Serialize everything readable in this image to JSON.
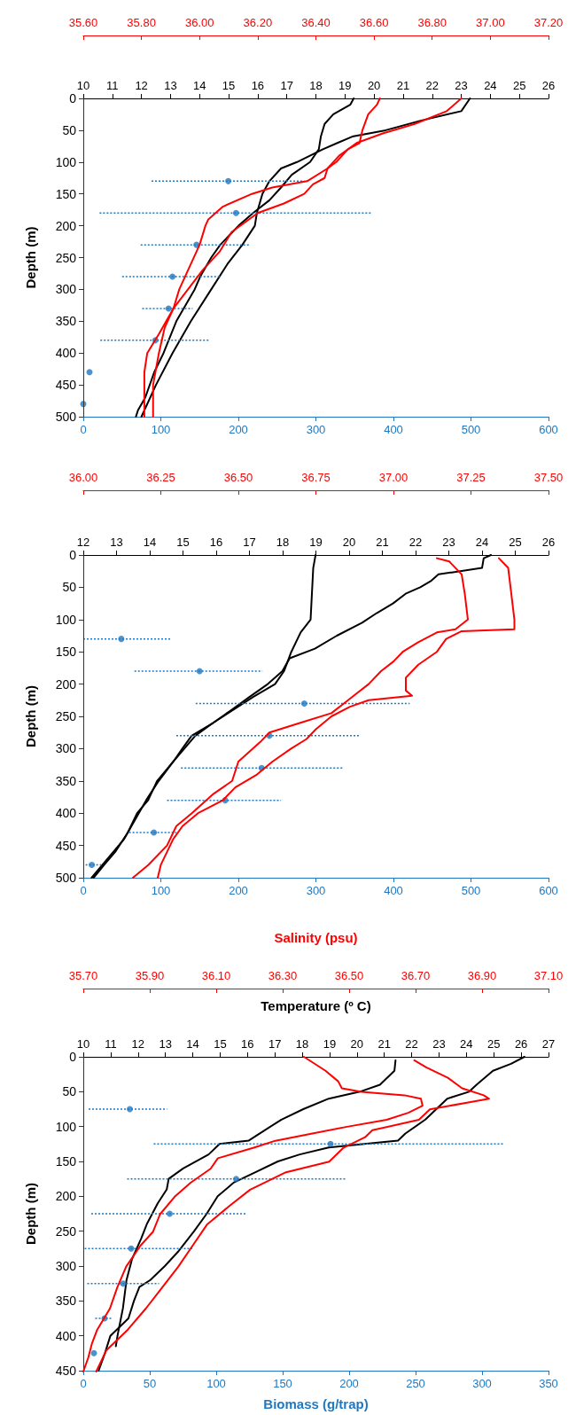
{
  "chart_data": [
    {
      "type": "line",
      "ylabel": "Depth (m)",
      "ylim": [
        500,
        0
      ],
      "yticks": [
        0,
        50,
        100,
        150,
        200,
        250,
        300,
        350,
        400,
        450,
        500
      ],
      "marker": "none",
      "xlim": [
        0,
        600
      ],
      "xticks": [
        0,
        100,
        200,
        300,
        400,
        500,
        600
      ],
      "x2lim": [
        10,
        26
      ],
      "x2ticks": [
        10,
        11,
        12,
        13,
        14,
        15,
        16,
        17,
        18,
        19,
        20,
        21,
        22,
        23,
        24,
        25,
        26
      ],
      "series": [
        {
          "axis": "x2",
          "color": "#000000",
          "x": [
            23.3,
            23.0,
            21.6,
            20.4,
            19.25,
            18.74,
            18.24,
            17.35,
            16.8,
            16.4,
            16.16,
            15.97,
            15.9,
            15.47,
            14.96,
            14.4,
            13.7,
            13.07,
            12.5,
            12.0
          ],
          "values": [
            0,
            20,
            35,
            50,
            60,
            70,
            80,
            100,
            110,
            130,
            150,
            180,
            200,
            230,
            260,
            300,
            350,
            400,
            450,
            500
          ]
        },
        {
          "axis": "x2",
          "color": "#000000",
          "x": [
            19.3,
            19.18,
            18.6,
            18.3,
            18.17,
            18.1,
            17.8,
            17.17,
            16.8,
            16.4,
            15.84,
            15.34,
            14.71,
            14.4,
            14.02,
            13.83,
            13.2,
            12.76,
            12.44,
            12.13,
            11.88,
            11.81
          ],
          "values": [
            0,
            10,
            25,
            40,
            60,
            80,
            100,
            120,
            140,
            160,
            180,
            200,
            230,
            250,
            280,
            300,
            350,
            400,
            430,
            470,
            490,
            500
          ]
        },
        {
          "type": "scatter",
          "marker": "circle",
          "color": "#1f78c1",
          "x": [
            187,
            197,
            146,
            115,
            110,
            93,
            8,
            0
          ],
          "values": [
            130,
            180,
            230,
            280,
            330,
            380,
            430,
            480
          ],
          "xerrors": [
            [
              88,
              285
            ],
            [
              21,
              372
            ],
            [
              74,
              215
            ],
            [
              50,
              177
            ],
            [
              76,
              141
            ],
            [
              22,
              163
            ],
            null,
            null
          ]
        }
      ]
    },
    {
      "type": "line",
      "ylim": [
        500,
        0
      ],
      "tick_labels": "x",
      "marker": "none",
      "xlim": [
        35.6,
        37.2
      ],
      "xticks": [
        {
          "value": 35.6,
          "label": "35.60"
        },
        {
          "value": 35.8,
          "label": "35.80"
        },
        {
          "value": 36.0,
          "label": "36.00"
        },
        {
          "value": 36.2,
          "label": "36.20"
        },
        {
          "value": 36.4,
          "label": "36.40"
        },
        {
          "value": 36.6,
          "label": "36.60"
        },
        {
          "value": 36.8,
          "label": "36.80"
        },
        {
          "value": 37.0,
          "label": "37.00"
        },
        {
          "value": 37.2,
          "label": "37.20"
        }
      ],
      "series": [
        {
          "color": "#ff0000",
          "x": [
            36.9,
            36.85,
            36.74,
            36.63,
            36.54,
            36.48,
            36.44,
            36.37,
            36.25,
            36.18,
            36.08,
            36.03,
            36.02,
            36.0,
            35.96,
            35.93,
            35.91,
            35.86,
            35.82,
            35.81,
            35.81
          ],
          "values": [
            0,
            20,
            40,
            55,
            70,
            90,
            110,
            130,
            140,
            150,
            170,
            190,
            200,
            230,
            270,
            300,
            330,
            370,
            400,
            430,
            500
          ]
        },
        {
          "color": "#ff0000",
          "x": [
            36.62,
            36.61,
            36.58,
            36.56,
            36.55,
            36.51,
            36.47,
            36.44,
            36.43,
            36.39,
            36.36,
            36.29,
            36.2,
            36.11,
            36.07,
            36.01,
            35.96,
            35.91,
            35.88,
            35.86,
            35.84,
            35.84
          ],
          "values": [
            0,
            10,
            25,
            50,
            70,
            80,
            100,
            110,
            125,
            135,
            150,
            165,
            180,
            210,
            240,
            270,
            300,
            330,
            360,
            400,
            450,
            500
          ]
        }
      ]
    },
    {
      "type": "line",
      "ylabel": "Depth (m)",
      "ylim": [
        500,
        0
      ],
      "yticks": [
        0,
        50,
        100,
        150,
        200,
        250,
        300,
        350,
        400,
        450,
        500
      ],
      "marker": "none",
      "xlim": [
        0,
        600
      ],
      "xticks": [
        0,
        100,
        200,
        300,
        400,
        500,
        600
      ],
      "x2lim": [
        12,
        26
      ],
      "x2ticks": [
        12,
        13,
        14,
        15,
        16,
        17,
        18,
        19,
        20,
        21,
        22,
        23,
        24,
        25,
        26
      ],
      "series": [
        {
          "axis": "x2",
          "color": "#000000",
          "x": [
            24.27,
            24.05,
            24.0,
            22.69,
            22.47,
            22.14,
            21.7,
            21.32,
            20.83,
            20.39,
            19.63,
            18.97,
            18.21,
            17.99,
            17.55,
            17.0,
            16.46,
            15.91,
            15.37,
            15.04,
            14.71,
            14.27,
            13.89,
            13.56,
            13.23,
            12.74,
            12.25
          ],
          "values": [
            0,
            5,
            20,
            30,
            40,
            50,
            60,
            75,
            90,
            105,
            125,
            145,
            160,
            180,
            200,
            220,
            240,
            260,
            280,
            300,
            320,
            350,
            380,
            410,
            440,
            470,
            500
          ]
        },
        {
          "axis": "x2",
          "color": "#000000",
          "x": [
            18.99,
            18.92,
            18.84,
            18.54,
            18.26,
            18.04,
            17.77,
            17.11,
            16.51,
            15.91,
            15.26,
            14.98,
            14.71,
            14.22,
            13.95,
            13.62,
            13.34,
            12.96,
            12.63,
            12.31
          ],
          "values": [
            0,
            20,
            100,
            120,
            150,
            180,
            200,
            220,
            240,
            260,
            280,
            300,
            320,
            350,
            380,
            400,
            430,
            460,
            480,
            500
          ]
        },
        {
          "type": "scatter",
          "marker": "circle",
          "color": "#1f78c1",
          "x": [
            49,
            150,
            285,
            240,
            230,
            183,
            91,
            11
          ],
          "values": [
            130,
            180,
            230,
            280,
            330,
            380,
            430,
            480
          ],
          "xerrors": [
            [
              0,
              112
            ],
            [
              66,
              231
            ],
            [
              145,
              421
            ],
            [
              120,
              357
            ],
            [
              126,
              334
            ],
            [
              108,
              255
            ],
            [
              59,
              120
            ],
            [
              3,
              24
            ]
          ]
        }
      ]
    },
    {
      "type": "line",
      "ylim": [
        500,
        0
      ],
      "tick_labels": "x",
      "marker": "none",
      "xlim": [
        36.0,
        37.5
      ],
      "xticks": [
        {
          "value": 36.0,
          "label": "36.00"
        },
        {
          "value": 36.25,
          "label": "36.25"
        },
        {
          "value": 36.5,
          "label": "36.50"
        },
        {
          "value": 36.75,
          "label": "36.75"
        },
        {
          "value": 37.0,
          "label": "37.00"
        },
        {
          "value": 37.25,
          "label": "37.25"
        },
        {
          "value": 37.5,
          "label": "37.50"
        }
      ],
      "series": [
        {
          "color": "#ff0000",
          "x": [
            37.14,
            37.18,
            37.22,
            37.23,
            37.24,
            37.2,
            37.14,
            37.08,
            37.03,
            37.0,
            36.96,
            36.92,
            36.88,
            36.84,
            36.8,
            36.7,
            36.6,
            36.57,
            36.5,
            36.48,
            36.42,
            36.35,
            36.3,
            36.27,
            36.21,
            36.16
          ],
          "values": [
            5,
            10,
            30,
            60,
            100,
            115,
            120,
            135,
            150,
            165,
            180,
            200,
            215,
            230,
            245,
            260,
            275,
            290,
            320,
            350,
            370,
            400,
            420,
            450,
            480,
            500
          ]
        },
        {
          "color": "#ff0000",
          "x": [
            37.34,
            37.37,
            37.38,
            37.39,
            37.39,
            37.22,
            37.17,
            37.14,
            37.08,
            37.04,
            37.04,
            37.06,
            36.92,
            36.86,
            36.8,
            36.75,
            36.72,
            36.67,
            36.61,
            36.56,
            36.49,
            36.45,
            36.37,
            36.32,
            36.29,
            36.27,
            36.25,
            36.24
          ],
          "values": [
            5,
            20,
            60,
            100,
            115,
            118,
            130,
            150,
            170,
            190,
            210,
            218,
            225,
            235,
            250,
            270,
            285,
            300,
            320,
            340,
            360,
            380,
            400,
            420,
            440,
            460,
            480,
            500
          ]
        }
      ]
    },
    {
      "type": "line",
      "ylabel": "Depth (m)",
      "ylim": [
        450,
        0
      ],
      "yticks": [
        0,
        50,
        100,
        150,
        200,
        250,
        300,
        350,
        400,
        450
      ],
      "marker": "none",
      "xlabel": "Biomass (g/trap)",
      "xlim": [
        0,
        350
      ],
      "xticks": [
        0,
        50,
        100,
        150,
        200,
        250,
        300,
        350
      ],
      "x2label": "Temperature (º C)",
      "x2lim": [
        10,
        27
      ],
      "x2ticks": [
        10,
        11,
        12,
        13,
        14,
        15,
        16,
        17,
        18,
        19,
        20,
        21,
        22,
        23,
        24,
        25,
        26,
        27
      ],
      "series": [
        {
          "axis": "x2",
          "color": "#000000",
          "x": [
            26.12,
            25.63,
            24.97,
            24.37,
            24.1,
            23.3,
            22.9,
            22.5,
            21.77,
            21.5,
            18.97,
            17.91,
            17.11,
            16.31,
            15.51,
            14.91,
            14.51,
            14.05,
            13.45,
            12.98,
            12.45,
            12.05,
            11.85,
            11.65,
            10.99,
            10.79,
            10.56
          ],
          "values": [
            0,
            10,
            20,
            40,
            50,
            60,
            75,
            90,
            110,
            120,
            130,
            140,
            150,
            165,
            180,
            200,
            225,
            250,
            280,
            300,
            320,
            330,
            350,
            375,
            400,
            425,
            450
          ]
        },
        {
          "axis": "x2",
          "color": "#000000",
          "x": [
            21.41,
            21.37,
            20.84,
            20.11,
            18.97,
            18.04,
            17.24,
            16.44,
            16.05,
            14.98,
            14.58,
            13.65,
            13.12,
            13.05,
            12.72,
            12.32,
            12.12,
            11.78,
            11.58,
            11.45,
            11.25,
            11.19
          ],
          "values": [
            5,
            20,
            40,
            50,
            60,
            75,
            90,
            110,
            120,
            125,
            140,
            160,
            175,
            190,
            210,
            240,
            260,
            290,
            320,
            360,
            400,
            415
          ]
        },
        {
          "type": "scatter",
          "marker": "circle",
          "color": "#1f78c1",
          "x": [
            35,
            186,
            115,
            65,
            36,
            30,
            16,
            8
          ],
          "values": [
            75,
            125,
            175,
            225,
            275,
            325,
            375,
            425
          ],
          "xerrors": [
            [
              4,
              63
            ],
            [
              53,
              317
            ],
            [
              33,
              197
            ],
            [
              6,
              123
            ],
            [
              1,
              82
            ],
            [
              3,
              57
            ],
            [
              9,
              22
            ],
            null
          ]
        }
      ]
    },
    {
      "type": "line",
      "ylim": [
        450,
        0
      ],
      "tick_labels": "x",
      "marker": "none",
      "xlabel": "Salinity (psu)",
      "xlim": [
        35.7,
        37.1
      ],
      "xticks": [
        {
          "value": 35.7,
          "label": "35.70"
        },
        {
          "value": 35.9,
          "label": "35.90"
        },
        {
          "value": 36.1,
          "label": "36.10"
        },
        {
          "value": 36.3,
          "label": "36.30"
        },
        {
          "value": 36.5,
          "label": "36.50"
        },
        {
          "value": 36.7,
          "label": "36.70"
        },
        {
          "value": 36.9,
          "label": "36.90"
        },
        {
          "value": 37.1,
          "label": "37.10"
        }
      ],
      "series": [
        {
          "color": "#ff0000",
          "x": [
            36.364,
            36.429,
            36.467,
            36.478,
            36.537,
            36.667,
            36.716,
            36.721,
            36.678,
            36.613,
            36.494,
            36.386,
            36.278,
            36.213,
            36.105,
            36.083,
            36.023,
            35.975,
            35.931,
            35.91,
            35.872,
            35.829,
            35.802,
            35.78,
            35.742,
            35.726,
            35.715,
            35.7
          ],
          "values": [
            0,
            20,
            35,
            45,
            50,
            55,
            60,
            70,
            80,
            90,
            100,
            110,
            120,
            130,
            145,
            160,
            180,
            200,
            225,
            250,
            270,
            300,
            330,
            360,
            390,
            410,
            430,
            450
          ]
        },
        {
          "color": "#ff0000",
          "x": [
            36.696,
            36.732,
            36.797,
            36.84,
            36.905,
            36.921,
            36.862,
            36.743,
            36.71,
            36.57,
            36.548,
            36.483,
            36.44,
            36.31,
            36.202,
            36.148,
            36.072,
            36.029,
            35.986,
            35.937,
            35.888,
            35.834,
            35.769,
            35.739
          ],
          "values": [
            5,
            15,
            30,
            45,
            55,
            60,
            65,
            75,
            90,
            105,
            115,
            130,
            150,
            165,
            190,
            210,
            240,
            270,
            300,
            330,
            360,
            390,
            420,
            450
          ]
        }
      ]
    }
  ]
}
